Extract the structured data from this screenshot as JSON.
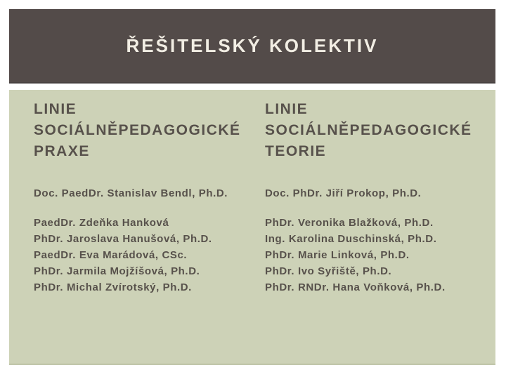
{
  "slide": {
    "title": "ŘEŠITELSKÝ KOLEKTIV",
    "colors": {
      "page_bg": "#ffffff",
      "header_bg": "#534b49",
      "header_text": "#f2eee4",
      "body_bg": "#cdd2b7",
      "body_text": "#57514b"
    },
    "columns": [
      {
        "heading": "LINIE SOCIÁLNĚPEDAGOGICKÉ PRAXE",
        "lead": "Doc. PaedDr. Stanislav Bendl, Ph.D.",
        "members": [
          "PaedDr. Zdeňka Hanková",
          "PhDr. Jaroslava Hanušová, Ph.D.",
          "PaedDr. Eva Marádová, CSc.",
          "PhDr. Jarmila Mojžíšová, Ph.D.",
          "PhDr. Michal Zvírotský, Ph.D."
        ]
      },
      {
        "heading": "LINIE SOCIÁLNĚPEDAGOGICKÉ TEORIE",
        "lead": "Doc. PhDr. Jiří Prokop, Ph.D.",
        "members": [
          "PhDr. Veronika Blažková, Ph.D.",
          "Ing. Karolina Duschinská, Ph.D.",
          "PhDr. Marie Linková, Ph.D.",
          "PhDr. Ivo Syřiště, Ph.D.",
          "PhDr. RNDr. Hana Voňková, Ph.D."
        ]
      }
    ]
  }
}
